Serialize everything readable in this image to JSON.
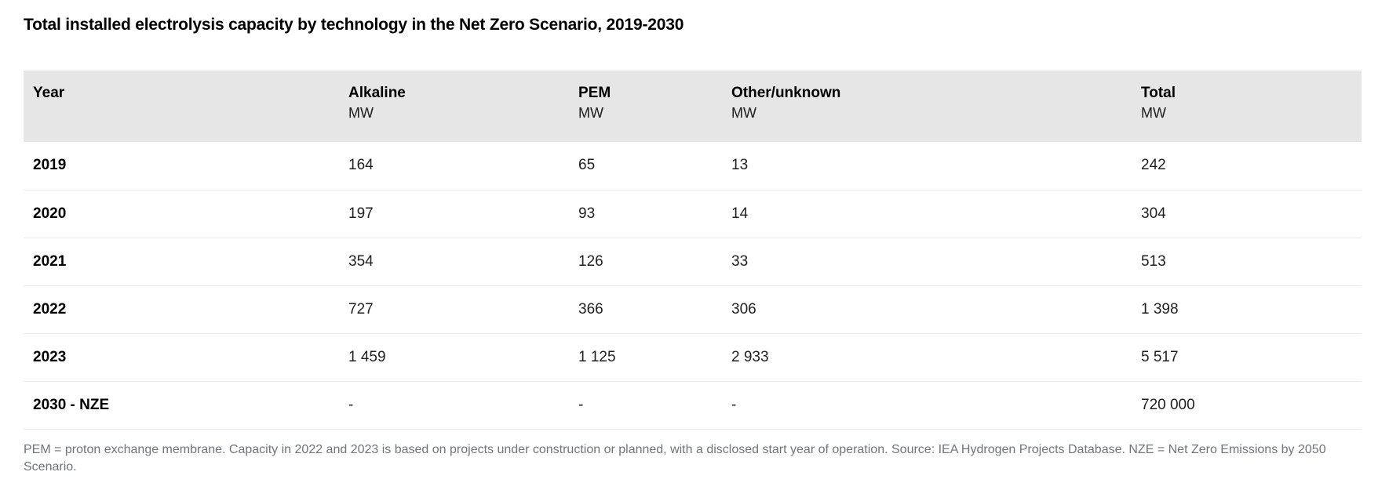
{
  "title": "Total installed electrolysis capacity by technology in the Net Zero Scenario, 2019-2030",
  "colors": {
    "header_bg": "#e6e6e6",
    "row_border": "#e9e9e9",
    "body_text": "#1f1f1f",
    "footnote_text": "#6e757c"
  },
  "table": {
    "columns": [
      {
        "label": "Year",
        "unit": ""
      },
      {
        "label": "Alkaline",
        "unit": "MW"
      },
      {
        "label": "PEM",
        "unit": "MW"
      },
      {
        "label": "Other/unknown",
        "unit": "MW"
      },
      {
        "label": "Total",
        "unit": "MW"
      }
    ],
    "rows": [
      {
        "year": "2019",
        "values": [
          "164",
          "65",
          "13",
          "242"
        ]
      },
      {
        "year": "2020",
        "values": [
          "197",
          "93",
          "14",
          "304"
        ]
      },
      {
        "year": "2021",
        "values": [
          "354",
          "126",
          "33",
          "513"
        ]
      },
      {
        "year": "2022",
        "values": [
          "727",
          "366",
          "306",
          "1 398"
        ]
      },
      {
        "year": "2023",
        "values": [
          "1 459",
          "1 125",
          "2 933",
          "5 517"
        ]
      },
      {
        "year": "2030 - NZE",
        "values": [
          "-",
          "-",
          "-",
          "720 000"
        ]
      }
    ]
  },
  "footnote": "PEM = proton exchange membrane. Capacity in 2022 and 2023 is based on projects under construction or planned, with a disclosed start year of operation. Source: IEA Hydrogen Projects Database. NZE = Net Zero Emissions by 2050 Scenario.",
  "chart_data": {
    "type": "table",
    "title": "Total installed electrolysis capacity by technology in the Net Zero Scenario, 2019-2030",
    "categories": [
      "2019",
      "2020",
      "2021",
      "2022",
      "2023",
      "2030 - NZE"
    ],
    "unit": "MW",
    "series": [
      {
        "name": "Alkaline (MW)",
        "values": [
          164,
          197,
          354,
          727,
          1459,
          null
        ]
      },
      {
        "name": "PEM (MW)",
        "values": [
          65,
          93,
          126,
          366,
          1125,
          null
        ]
      },
      {
        "name": "Other/unknown (MW)",
        "values": [
          13,
          14,
          33,
          306,
          2933,
          null
        ]
      },
      {
        "name": "Total (MW)",
        "values": [
          242,
          304,
          513,
          1398,
          5517,
          720000
        ]
      }
    ],
    "footnote": "PEM = proton exchange membrane. Capacity in 2022 and 2023 is based on projects under construction or planned, with a disclosed start year of operation. Source: IEA Hydrogen Projects Database. NZE = Net Zero Emissions by 2050 Scenario."
  }
}
